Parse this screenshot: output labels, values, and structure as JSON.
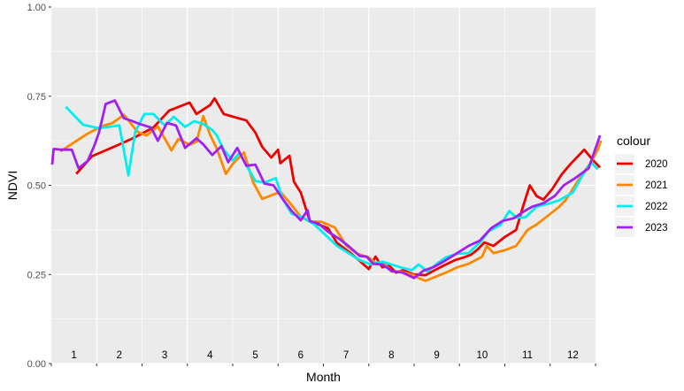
{
  "chart_data": {
    "type": "line",
    "xlabel": "Month",
    "ylabel": "NDVI",
    "ylim": [
      0,
      1
    ],
    "xlim": [
      0.5,
      12.5
    ],
    "y_ticks": [
      "0.00",
      "0.25",
      "0.50",
      "0.75",
      "1.00"
    ],
    "y_tick_values": [
      0,
      0.25,
      0.5,
      0.75,
      1
    ],
    "month_labels": [
      "1",
      "2",
      "3",
      "4",
      "5",
      "6",
      "7",
      "8",
      "9",
      "10",
      "11",
      "12"
    ],
    "legend_title": "colour",
    "grid": true,
    "legend_position": "right",
    "series": [
      {
        "name": "2020",
        "color": "#ee0000",
        "x": [
          1.05,
          1.4,
          1.95,
          2.3,
          2.75,
          3.1,
          3.55,
          3.7,
          4.0,
          4.1,
          4.3,
          4.8,
          5.0,
          5.15,
          5.35,
          5.5,
          5.55,
          5.75,
          5.85,
          6.0,
          6.2,
          6.6,
          6.8,
          7.1,
          7.3,
          7.5,
          7.65,
          7.8,
          7.95,
          8.1,
          8.25,
          8.5,
          8.75,
          9.0,
          9.2,
          9.4,
          9.6,
          9.75,
          9.9,
          10.05,
          10.25,
          10.5,
          10.75,
          10.9,
          11.05,
          11.2,
          11.35,
          11.55,
          11.75,
          11.95,
          12.1,
          12.25,
          12.45,
          12.6
        ],
        "y": [
          0.532,
          0.582,
          0.612,
          0.632,
          0.662,
          0.71,
          0.732,
          0.7,
          0.725,
          0.744,
          0.7,
          0.682,
          0.648,
          0.608,
          0.578,
          0.6,
          0.562,
          0.583,
          0.51,
          0.48,
          0.4,
          0.38,
          0.338,
          0.31,
          0.288,
          0.265,
          0.3,
          0.27,
          0.275,
          0.255,
          0.262,
          0.25,
          0.248,
          0.265,
          0.278,
          0.29,
          0.298,
          0.305,
          0.32,
          0.34,
          0.33,
          0.355,
          0.375,
          0.44,
          0.5,
          0.47,
          0.46,
          0.49,
          0.53,
          0.56,
          0.58,
          0.6,
          0.57,
          0.55
        ]
      },
      {
        "name": "2021",
        "color": "#ff8800",
        "x": [
          0.7,
          1.0,
          1.3,
          1.6,
          1.85,
          2.1,
          2.4,
          2.6,
          2.85,
          3.15,
          3.3,
          3.55,
          3.7,
          3.85,
          4.0,
          4.15,
          4.35,
          4.5,
          4.75,
          4.95,
          5.15,
          5.35,
          5.55,
          5.75,
          6.0,
          6.2,
          6.45,
          6.75,
          7.0,
          7.25,
          7.5,
          7.65,
          7.8,
          8.0,
          8.2,
          8.5,
          8.6,
          8.75,
          9.0,
          9.2,
          9.45,
          9.7,
          10.0,
          10.1,
          10.25,
          10.5,
          10.75,
          11.0,
          11.2,
          11.45,
          11.7,
          11.85,
          12.0,
          12.2,
          12.4,
          12.55,
          12.62
        ],
        "y": [
          0.595,
          0.62,
          0.645,
          0.665,
          0.675,
          0.698,
          0.65,
          0.64,
          0.665,
          0.598,
          0.63,
          0.614,
          0.622,
          0.694,
          0.642,
          0.602,
          0.532,
          0.56,
          0.592,
          0.508,
          0.462,
          0.472,
          0.482,
          0.452,
          0.412,
          0.398,
          0.398,
          0.382,
          0.332,
          0.308,
          0.298,
          0.282,
          0.285,
          0.258,
          0.258,
          0.248,
          0.24,
          0.232,
          0.245,
          0.255,
          0.27,
          0.28,
          0.3,
          0.33,
          0.31,
          0.318,
          0.33,
          0.375,
          0.39,
          0.415,
          0.44,
          0.46,
          0.49,
          0.53,
          0.565,
          0.6,
          0.625
        ]
      },
      {
        "name": "2022",
        "color": "#00eeee",
        "x": [
          0.82,
          1.2,
          1.55,
          2.0,
          2.2,
          2.35,
          2.55,
          2.75,
          3.0,
          3.2,
          3.45,
          3.65,
          3.85,
          4.05,
          4.15,
          4.3,
          4.5,
          4.65,
          4.8,
          5.0,
          5.2,
          5.45,
          5.6,
          5.8,
          6.05,
          6.3,
          6.55,
          6.8,
          7.05,
          7.3,
          7.55,
          7.8,
          8.0,
          8.2,
          8.45,
          8.6,
          8.8,
          9.0,
          9.2,
          9.45,
          9.7,
          9.95,
          10.15,
          10.4,
          10.6,
          10.75,
          10.95,
          11.2,
          11.5,
          11.7,
          12.0,
          12.2,
          12.4,
          12.55
        ],
        "y": [
          0.72,
          0.67,
          0.66,
          0.668,
          0.528,
          0.65,
          0.7,
          0.7,
          0.668,
          0.692,
          0.664,
          0.68,
          0.672,
          0.655,
          0.64,
          0.6,
          0.57,
          0.59,
          0.556,
          0.512,
          0.508,
          0.52,
          0.462,
          0.42,
          0.41,
          0.39,
          0.36,
          0.33,
          0.31,
          0.29,
          0.278,
          0.286,
          0.278,
          0.27,
          0.262,
          0.278,
          0.258,
          0.28,
          0.298,
          0.308,
          0.31,
          0.34,
          0.372,
          0.388,
          0.428,
          0.41,
          0.41,
          0.44,
          0.45,
          0.458,
          0.48,
          0.525,
          0.565,
          0.545
        ]
      },
      {
        "name": "2023",
        "color": "#a020f0",
        "x": [
          0.52,
          0.55,
          0.7,
          0.95,
          1.1,
          1.3,
          1.45,
          1.55,
          1.7,
          1.9,
          2.1,
          2.25,
          2.45,
          2.7,
          2.85,
          3.05,
          3.25,
          3.45,
          3.7,
          3.85,
          4.05,
          4.25,
          4.4,
          4.6,
          4.8,
          5.0,
          5.2,
          5.4,
          5.6,
          5.8,
          6.0,
          6.15,
          6.2,
          6.4,
          6.6,
          6.85,
          7.05,
          7.3,
          7.45,
          7.6,
          7.8,
          8.0,
          8.25,
          8.5,
          8.7,
          8.95,
          9.2,
          9.45,
          9.7,
          9.95,
          10.2,
          10.45,
          10.7,
          10.9,
          11.1,
          11.35,
          11.6,
          11.8,
          12.05,
          12.35,
          12.6
        ],
        "y": [
          0.558,
          0.602,
          0.6,
          0.6,
          0.548,
          0.568,
          0.612,
          0.648,
          0.728,
          0.738,
          0.688,
          0.682,
          0.672,
          0.662,
          0.625,
          0.675,
          0.668,
          0.605,
          0.632,
          0.615,
          0.585,
          0.61,
          0.565,
          0.605,
          0.555,
          0.558,
          0.505,
          0.5,
          0.462,
          0.428,
          0.402,
          0.43,
          0.4,
          0.392,
          0.37,
          0.35,
          0.33,
          0.302,
          0.3,
          0.28,
          0.278,
          0.26,
          0.255,
          0.24,
          0.26,
          0.272,
          0.29,
          0.31,
          0.33,
          0.345,
          0.38,
          0.4,
          0.408,
          0.425,
          0.44,
          0.45,
          0.47,
          0.5,
          0.52,
          0.548,
          0.64
        ]
      }
    ]
  }
}
